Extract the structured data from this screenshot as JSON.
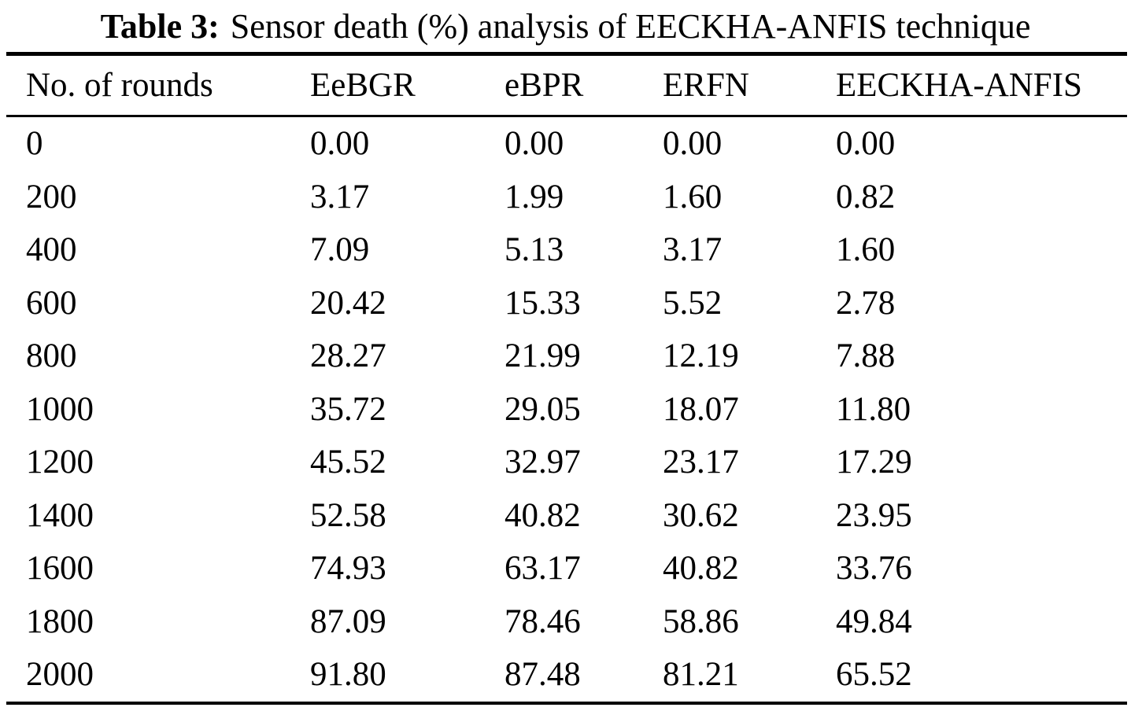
{
  "table": {
    "caption_label": "Table 3:",
    "caption_text": "Sensor death (%) analysis of EECKHA-ANFIS technique",
    "columns": [
      "No. of rounds",
      "EeBGR",
      "eBPR",
      "ERFN",
      "EECKHA-ANFIS"
    ],
    "rows": [
      [
        "0",
        "0.00",
        "0.00",
        "0.00",
        "0.00"
      ],
      [
        "200",
        "3.17",
        "1.99",
        "1.60",
        "0.82"
      ],
      [
        "400",
        "7.09",
        "5.13",
        "3.17",
        "1.60"
      ],
      [
        "600",
        "20.42",
        "15.33",
        "5.52",
        "2.78"
      ],
      [
        "800",
        "28.27",
        "21.99",
        "12.19",
        "7.88"
      ],
      [
        "1000",
        "35.72",
        "29.05",
        "18.07",
        "11.80"
      ],
      [
        "1200",
        "45.52",
        "32.97",
        "23.17",
        "17.29"
      ],
      [
        "1400",
        "52.58",
        "40.82",
        "30.62",
        "23.95"
      ],
      [
        "1600",
        "74.93",
        "63.17",
        "40.82",
        "33.76"
      ],
      [
        "1800",
        "87.09",
        "78.46",
        "58.86",
        "49.84"
      ],
      [
        "2000",
        "91.80",
        "87.48",
        "81.21",
        "65.52"
      ]
    ],
    "text_color": "#000000",
    "background_color": "#ffffff"
  }
}
